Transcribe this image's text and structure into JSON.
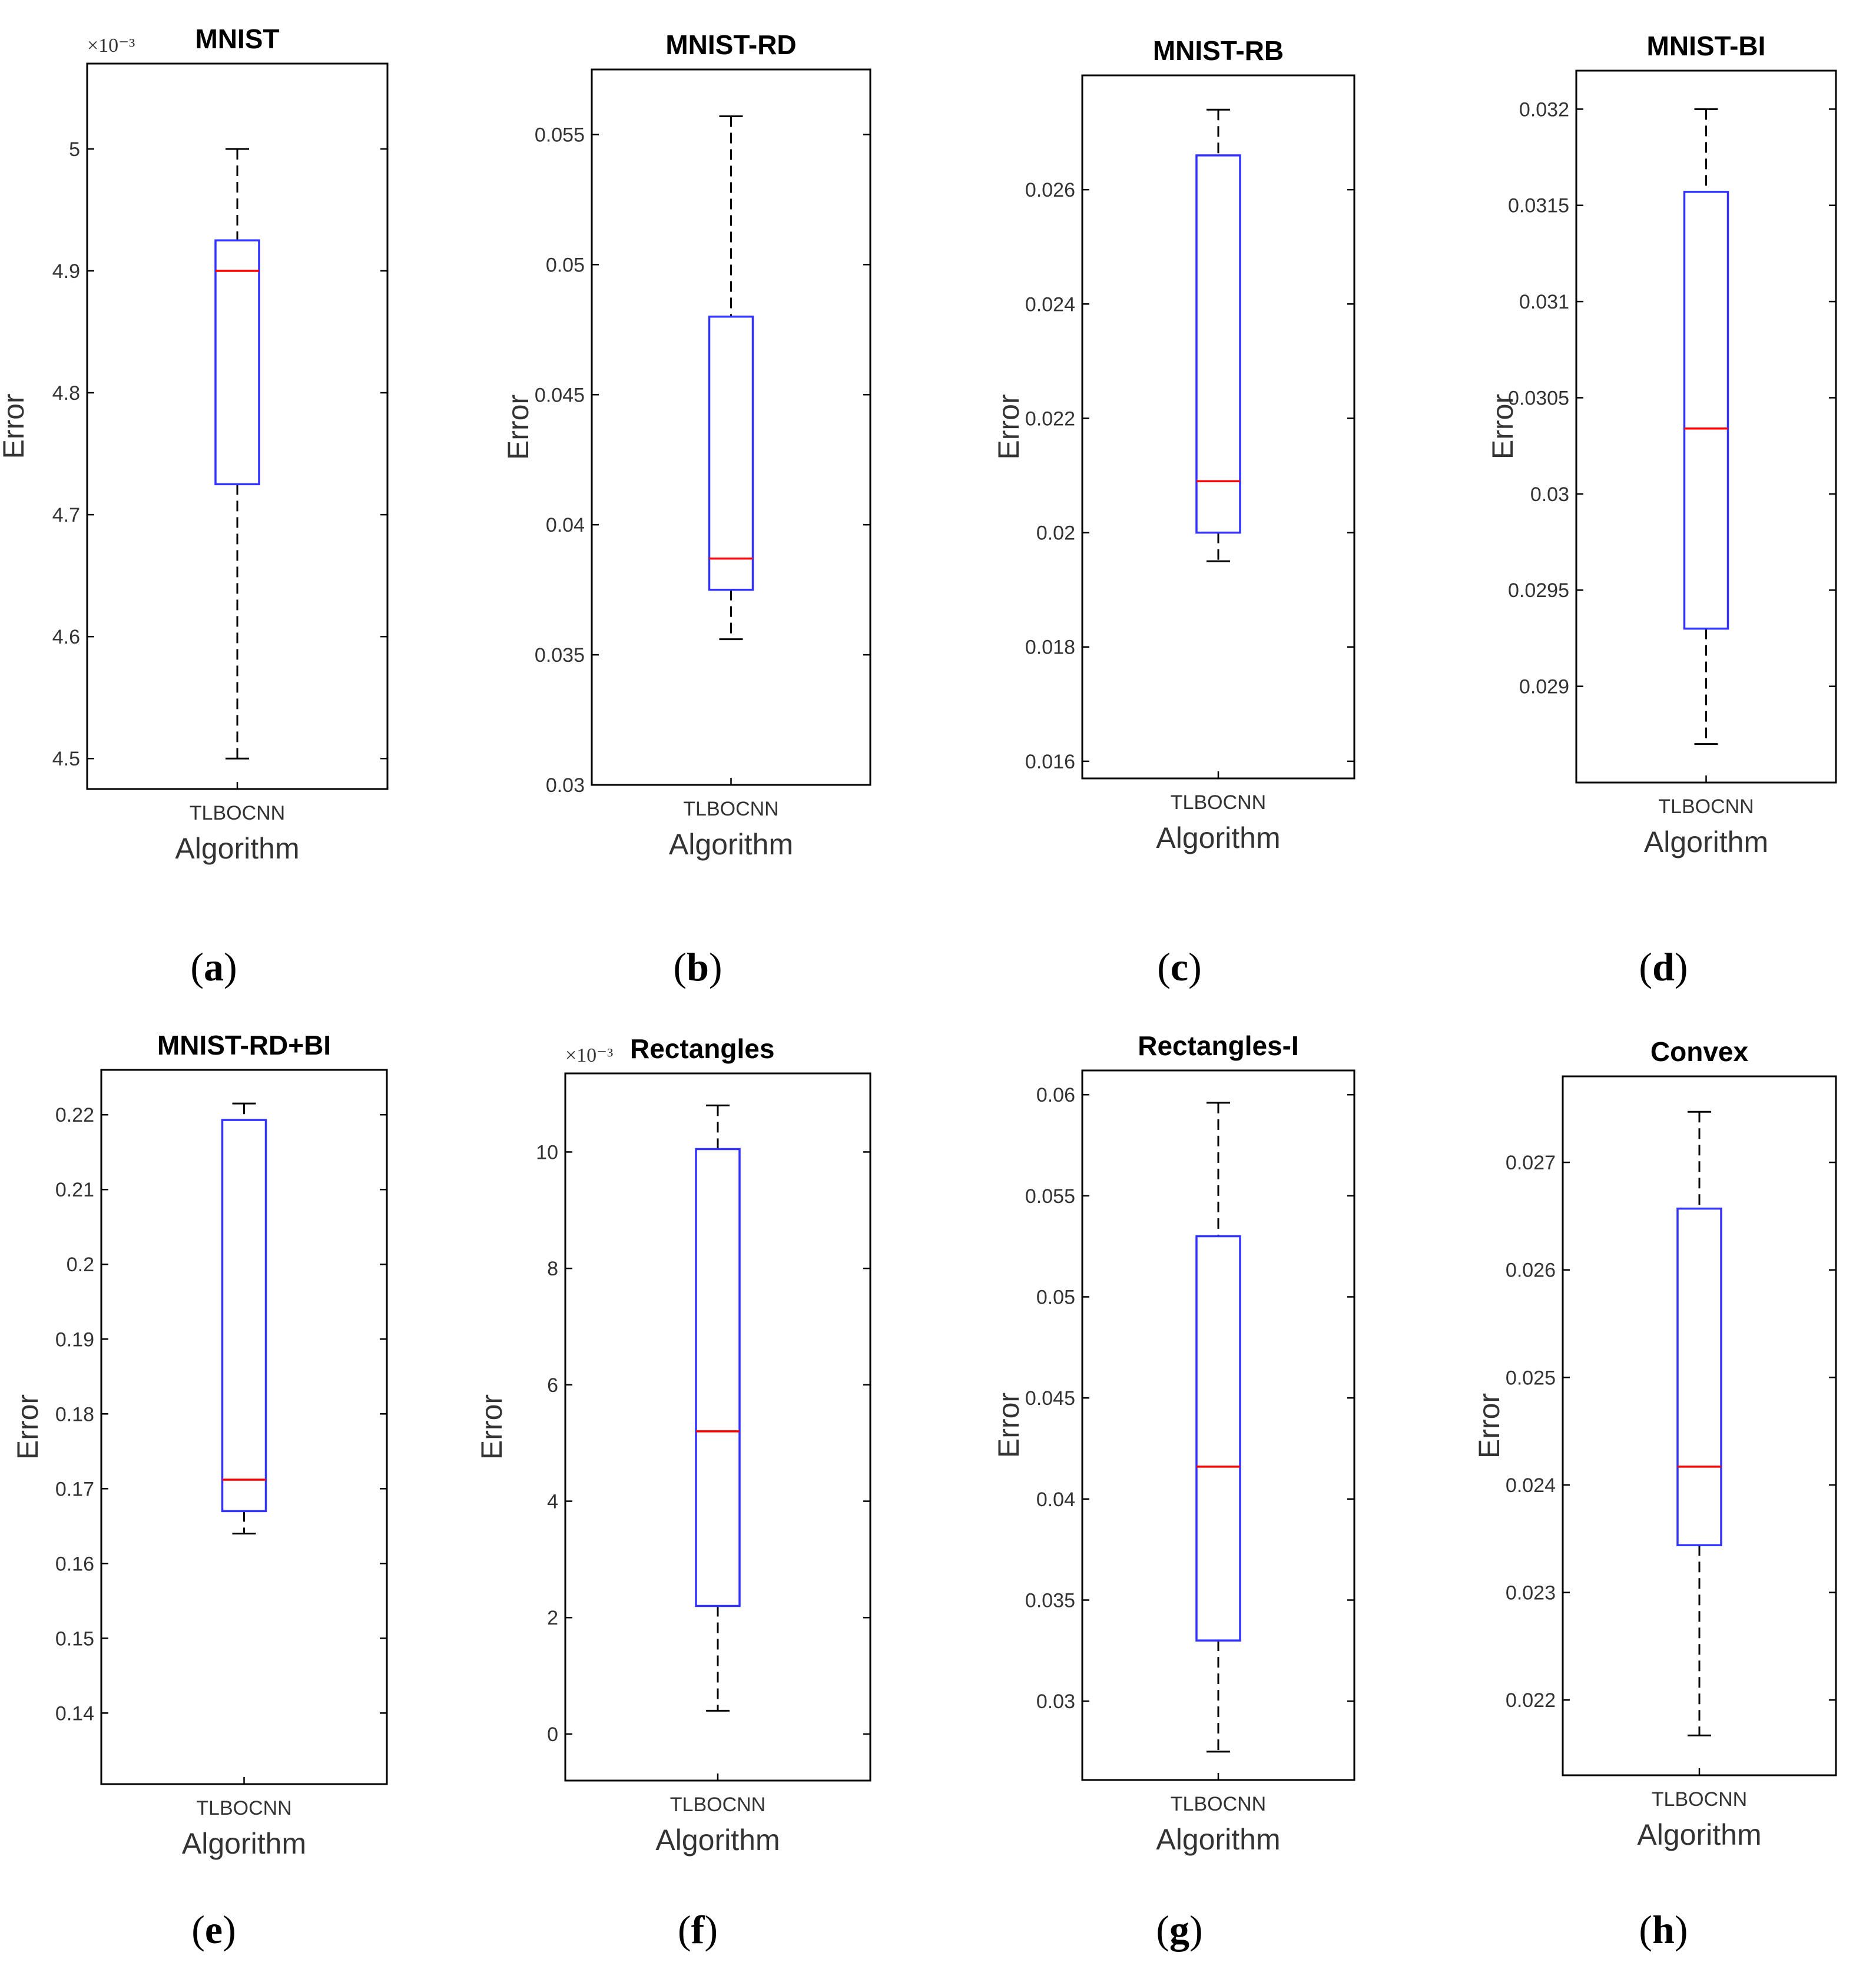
{
  "figure": {
    "x_axis_label": "Algorithm",
    "y_axis_label": "Error",
    "category": "TLBOCNN"
  },
  "colors": {
    "box": "#3333ff",
    "median": "#ff0000",
    "whisker": "#000000",
    "axes": "#000000"
  },
  "chart_data": [
    {
      "type": "box",
      "panel": "(a)",
      "caption_letter": "a",
      "title": "MNIST",
      "xlabel": "Algorithm",
      "ylabel": "Error",
      "category": "TLBOCNN",
      "exponent": "×10⁻³",
      "scale": 0.001,
      "ylim": [
        4.475,
        5.07
      ],
      "yticks": [
        4.5,
        4.6,
        4.7,
        4.8,
        4.9,
        5.0
      ],
      "yticklabels": [
        "4.5",
        "4.6",
        "4.7",
        "4.8",
        "4.9",
        "5"
      ],
      "box": {
        "min": 4.5,
        "q1": 4.725,
        "median": 4.9,
        "q3": 4.925,
        "max": 5.0
      }
    },
    {
      "type": "box",
      "panel": "(b)",
      "caption_letter": "b",
      "title": "MNIST-RD",
      "xlabel": "Algorithm",
      "ylabel": "Error",
      "category": "TLBOCNN",
      "exponent": "",
      "scale": 1,
      "ylim": [
        0.03,
        0.0575
      ],
      "yticks": [
        0.03,
        0.035,
        0.04,
        0.045,
        0.05,
        0.055
      ],
      "yticklabels": [
        "0.03",
        "0.035",
        "0.04",
        "0.045",
        "0.05",
        "0.055"
      ],
      "box": {
        "min": 0.0356,
        "q1": 0.0375,
        "median": 0.0387,
        "q3": 0.048,
        "max": 0.0557
      }
    },
    {
      "type": "box",
      "panel": "(c)",
      "caption_letter": "c",
      "title": "MNIST-RB",
      "xlabel": "Algorithm",
      "ylabel": "Error",
      "category": "TLBOCNN",
      "exponent": "",
      "scale": 1,
      "ylim": [
        0.0157,
        0.028
      ],
      "yticks": [
        0.016,
        0.018,
        0.02,
        0.022,
        0.024,
        0.026
      ],
      "yticklabels": [
        "0.016",
        "0.018",
        "0.02",
        "0.022",
        "0.024",
        "0.026"
      ],
      "box": {
        "min": 0.0195,
        "q1": 0.02,
        "median": 0.0209,
        "q3": 0.0266,
        "max": 0.0274
      }
    },
    {
      "type": "box",
      "panel": "(d)",
      "caption_letter": "d",
      "title": "MNIST-BI",
      "xlabel": "Algorithm",
      "ylabel": "Error",
      "category": "TLBOCNN",
      "exponent": "",
      "scale": 1,
      "ylim": [
        0.0285,
        0.0322
      ],
      "yticks": [
        0.029,
        0.0295,
        0.03,
        0.0305,
        0.031,
        0.0315,
        0.032
      ],
      "yticklabels": [
        "0.029",
        "0.0295",
        "0.03",
        "0.0305",
        "0.031",
        "0.0315",
        "0.032"
      ],
      "box": {
        "min": 0.0287,
        "q1": 0.0293,
        "median": 0.03034,
        "q3": 0.03157,
        "max": 0.032
      }
    },
    {
      "type": "box",
      "panel": "(e)",
      "caption_letter": "e",
      "title": "MNIST-RD+BI",
      "xlabel": "Algorithm",
      "ylabel": "Error",
      "category": "TLBOCNN",
      "exponent": "",
      "scale": 1,
      "ylim": [
        0.1305,
        0.226
      ],
      "yticks": [
        0.14,
        0.15,
        0.16,
        0.17,
        0.18,
        0.19,
        0.2,
        0.21,
        0.22
      ],
      "yticklabels": [
        "0.14",
        "0.15",
        "0.16",
        "0.17",
        "0.18",
        "0.19",
        "0.2",
        "0.21",
        "0.22"
      ],
      "box": {
        "min": 0.164,
        "q1": 0.167,
        "median": 0.1712,
        "q3": 0.2193,
        "max": 0.2215
      }
    },
    {
      "type": "box",
      "panel": "(f)",
      "caption_letter": "f",
      "title": "Rectangles",
      "xlabel": "Algorithm",
      "ylabel": "Error",
      "category": "TLBOCNN",
      "exponent": "×10⁻³",
      "scale": 0.001,
      "ylim": [
        -0.8,
        11.35
      ],
      "yticks": [
        0,
        2,
        4,
        6,
        8,
        10
      ],
      "yticklabels": [
        "0",
        "2",
        "4",
        "6",
        "8",
        "10"
      ],
      "box": {
        "min": 0.4,
        "q1": 2.2,
        "median": 5.2,
        "q3": 10.05,
        "max": 10.8
      }
    },
    {
      "type": "box",
      "panel": "(g)",
      "caption_letter": "g",
      "title": "Rectangles-I",
      "xlabel": "Algorithm",
      "ylabel": "Error",
      "category": "TLBOCNN",
      "exponent": "",
      "scale": 1,
      "ylim": [
        0.0261,
        0.0612
      ],
      "yticks": [
        0.03,
        0.035,
        0.04,
        0.045,
        0.05,
        0.055,
        0.06
      ],
      "yticklabels": [
        "0.03",
        "0.035",
        "0.04",
        "0.045",
        "0.05",
        "0.055",
        "0.06"
      ],
      "box": {
        "min": 0.0275,
        "q1": 0.033,
        "median": 0.0416,
        "q3": 0.053,
        "max": 0.0596
      }
    },
    {
      "type": "box",
      "panel": "(h)",
      "caption_letter": "h",
      "title": "Convex",
      "xlabel": "Algorithm",
      "ylabel": "Error",
      "category": "TLBOCNN",
      "exponent": "",
      "scale": 1,
      "ylim": [
        0.0213,
        0.0278
      ],
      "yticks": [
        0.022,
        0.023,
        0.024,
        0.025,
        0.026,
        0.027
      ],
      "yticklabels": [
        "0.022",
        "0.023",
        "0.024",
        "0.025",
        "0.026",
        "0.027"
      ],
      "box": {
        "min": 0.02167,
        "q1": 0.02344,
        "median": 0.02417,
        "q3": 0.02657,
        "max": 0.02747
      }
    }
  ]
}
